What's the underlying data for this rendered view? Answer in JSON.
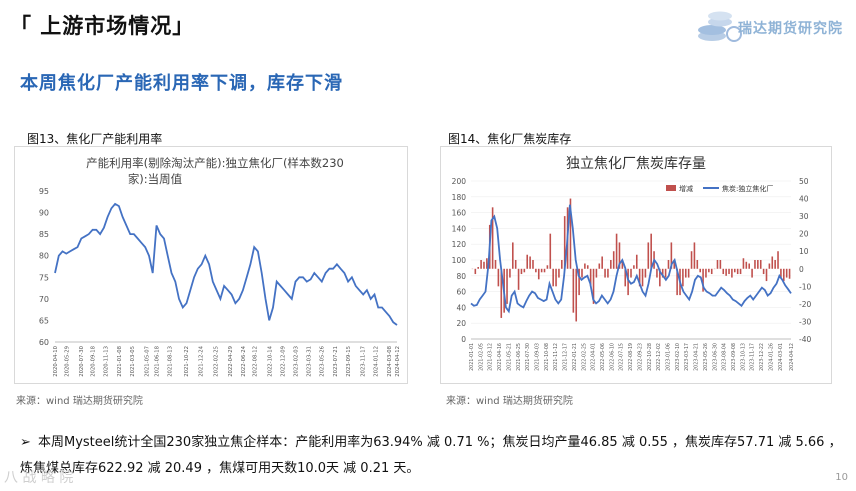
{
  "header": {
    "title": "「 上游市场情况」",
    "logo_text": "瑞达期货研究院",
    "subtitle": "本周焦化厂产能利用率下调，库存下滑"
  },
  "figures": {
    "fig13_label": "图13、焦化厂产能利用率",
    "fig14_label": "图14、焦化厂焦炭库存",
    "source13": "来源：wind   瑞达期货研究院",
    "source14": "来源：wind   瑞达期货研究院"
  },
  "summary": {
    "line1": "本周Mysteel统计全国230家独立焦企样本：产能利用率为63.94% 减 0.71 %；焦炭日均产量46.85 减 0.55 ，焦炭库存57.71 减 5.66 ，",
    "line2": "炼焦煤总库存622.92 减 20.49 ，焦煤可用天数10.0天 减 0.21 天。"
  },
  "page_number": "10",
  "watermark": "八 战 略 院",
  "colors": {
    "accent_blue": "#2a67b5",
    "line_blue": "#4472c4",
    "bar_red": "#c0504d",
    "axis_gray": "#7f7f7f"
  },
  "chart_data": [
    {
      "type": "line",
      "title": "产能利用率(剔除淘汰产能):独立焦化厂(样本数230家):当周值",
      "title_line1": "产能利用率(剔除淘汰产能):独立焦化厂(样本数230",
      "title_line2": "家):当周值",
      "ylim": [
        60,
        95
      ],
      "yticks": [
        "60",
        "65",
        "70",
        "75",
        "80",
        "85",
        "90",
        "95"
      ],
      "xticks": [
        "2020-04-10",
        "2020-05-29",
        "2020-07-30",
        "2020-09-18",
        "2020-11-13",
        "2021-01-08",
        "2021-03-05",
        "2021-05-07",
        "2021-06-18",
        "2021-08-13",
        "2021-10-22",
        "2021-12-24",
        "2022-02-25",
        "2022-04-29",
        "2022-06-24",
        "2022-08-12",
        "2022-10-14",
        "2022-12-09",
        "2023-02-03",
        "2023-03-31",
        "2023-05-26",
        "2023-07-21",
        "2023-09-15",
        "2023-11-17",
        "2024-01-12",
        "2024-03-08",
        "2024-04-12"
      ],
      "x_start": "2020-04-10",
      "x_end": "2024-04-12",
      "series": [
        {
          "values": [
            76,
            80,
            81,
            80.5,
            81,
            81.5,
            82,
            84,
            84.5,
            85,
            86,
            86,
            85,
            86.5,
            89,
            91,
            92,
            91.5,
            89,
            87,
            85,
            85,
            84,
            83,
            82,
            80,
            76,
            87,
            85,
            84,
            80,
            76,
            74,
            70,
            68,
            69,
            72,
            75,
            77,
            78,
            80,
            78,
            74,
            72,
            70,
            73,
            72,
            71,
            69,
            70,
            72,
            75,
            78,
            82,
            81,
            76,
            70,
            65,
            68,
            74,
            73,
            72,
            71,
            70,
            74,
            75,
            75,
            74,
            74.5,
            76,
            75,
            74,
            76,
            77,
            77,
            78,
            77,
            76,
            74,
            75,
            73,
            72,
            71,
            72,
            70,
            71,
            68,
            68,
            67,
            66,
            64.6,
            63.94
          ]
        }
      ]
    },
    {
      "type": "bar+line",
      "title": "独立焦化厂焦炭库存量",
      "legend": [
        "增减",
        "焦炭:独立焦化厂"
      ],
      "legend_position": "top",
      "ylim_left": [
        0,
        200
      ],
      "yticks_left": [
        "0",
        "20",
        "40",
        "60",
        "80",
        "100",
        "120",
        "140",
        "160",
        "180",
        "200"
      ],
      "ylim_right": [
        -40,
        50
      ],
      "yticks_right": [
        "-40",
        "-30",
        "-20",
        "-10",
        "0",
        "10",
        "20",
        "30",
        "40",
        "50"
      ],
      "xticks": [
        "2021-01-01",
        "2021-02-05",
        "2021-03-12",
        "2021-04-16",
        "2021-05-21",
        "2021-06-25",
        "2021-07-30",
        "2021-09-03",
        "2021-10-08",
        "2021-11-12",
        "2021-12-17",
        "2022-01-21",
        "2022-02-25",
        "2022-04-01",
        "2022-05-06",
        "2022-06-10",
        "2022-07-15",
        "2022-08-19",
        "2022-09-23",
        "2022-10-28",
        "2022-12-02",
        "2023-01-06",
        "2023-02-10",
        "2023-03-17",
        "2023-04-21",
        "2023-05-26",
        "2023-06-30",
        "2023-08-04",
        "2023-09-08",
        "2023-10-13",
        "2023-11-17",
        "2023-12-22",
        "2024-01-26",
        "2024-03-01",
        "2024-04-12"
      ],
      "x_start": "2021-01-01",
      "x_end": "2024-04-12",
      "series": [
        {
          "name": "焦炭:独立焦化厂",
          "axis": "left",
          "values": [
            45,
            42,
            43,
            50,
            55,
            60,
            95,
            150,
            155,
            140,
            100,
            70,
            40,
            35,
            55,
            60,
            45,
            42,
            40,
            48,
            55,
            60,
            58,
            52,
            50,
            48,
            50,
            70,
            60,
            50,
            45,
            50,
            80,
            120,
            170,
            140,
            100,
            80,
            75,
            78,
            80,
            70,
            50,
            45,
            48,
            55,
            50,
            45,
            50,
            60,
            80,
            95,
            100,
            90,
            75,
            70,
            72,
            80,
            70,
            60,
            55,
            70,
            90,
            100,
            95,
            85,
            80,
            75,
            80,
            95,
            100,
            85,
            70,
            60,
            55,
            50,
            60,
            75,
            80,
            78,
            65,
            60,
            58,
            55,
            55,
            60,
            65,
            62,
            58,
            55,
            50,
            48,
            45,
            42,
            48,
            52,
            55,
            50,
            55,
            60,
            65,
            62,
            55,
            58,
            65,
            70,
            80,
            75,
            68,
            63,
            57.71
          ]
        },
        {
          "name": "增减",
          "axis": "right",
          "values": [
            0,
            -3,
            1,
            5,
            4,
            6,
            25,
            35,
            5,
            -10,
            -28,
            -25,
            -20,
            -5,
            15,
            5,
            -12,
            -3,
            -2,
            8,
            7,
            5,
            -2,
            -6,
            -2,
            -2,
            2,
            20,
            -10,
            -10,
            -5,
            5,
            30,
            35,
            40,
            -25,
            -30,
            -15,
            -5,
            3,
            2,
            -10,
            -20,
            -5,
            3,
            7,
            -5,
            -5,
            5,
            10,
            20,
            15,
            5,
            -10,
            -15,
            -5,
            2,
            8,
            -10,
            -10,
            -5,
            15,
            20,
            10,
            -5,
            -10,
            -5,
            -5,
            5,
            15,
            5,
            -15,
            -15,
            -10,
            -5,
            -5,
            10,
            15,
            5,
            -2,
            -13,
            -5,
            -2,
            -3,
            0,
            5,
            5,
            -3,
            -4,
            -3,
            -5,
            -2,
            -3,
            -3,
            6,
            4,
            3,
            -5,
            5,
            5,
            5,
            -3,
            -7,
            3,
            7,
            5,
            10,
            -5,
            -7,
            -5,
            -5.66
          ]
        }
      ]
    }
  ]
}
